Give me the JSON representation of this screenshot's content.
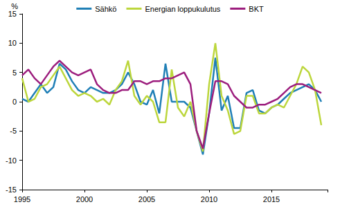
{
  "chart_data": {
    "type": "line",
    "y_label": "%",
    "x": [
      1995,
      1995.5,
      1996,
      1996.5,
      1997,
      1997.5,
      1998,
      1998.5,
      1999,
      1999.5,
      2000,
      2000.5,
      2001,
      2001.5,
      2002,
      2002.5,
      2003,
      2003.5,
      2004,
      2004.5,
      2005,
      2005.5,
      2006,
      2006.5,
      2007,
      2007.5,
      2008,
      2008.5,
      2009,
      2009.5,
      2010,
      2010.5,
      2011,
      2011.5,
      2012,
      2012.5,
      2013,
      2013.5,
      2014,
      2014.5,
      2015,
      2015.5,
      2016,
      2016.5,
      2017,
      2017.5,
      2018,
      2018.5,
      2019
    ],
    "series": [
      {
        "name": "Sähkö",
        "color": "#1f7fb6",
        "values": [
          0.5,
          0,
          1.5,
          3,
          1.5,
          2.5,
          6.5,
          5.5,
          3.5,
          2,
          1.5,
          2.5,
          2,
          1.5,
          1.5,
          2,
          3,
          5,
          3,
          0,
          -0.5,
          2,
          -2,
          6.5,
          0,
          0,
          0,
          -1,
          -5,
          -9,
          -2,
          7.5,
          -1.5,
          1,
          -4.5,
          -4.5,
          1.5,
          2,
          -1.5,
          -2,
          -1,
          -0.5,
          0.5,
          1.5,
          2,
          2.5,
          3,
          2,
          0
        ]
      },
      {
        "name": "Energian loppukulutus",
        "color": "#bcd63c",
        "values": [
          4,
          0,
          0.5,
          2.5,
          3,
          4.5,
          6,
          4,
          2,
          1,
          1.5,
          1,
          0,
          0.5,
          -0.5,
          2,
          3.5,
          7,
          1,
          -0.5,
          1,
          0,
          -3.5,
          -3.5,
          5.5,
          -1,
          -2.5,
          0,
          -5,
          -8.5,
          3,
          10,
          1,
          -1.5,
          -5.5,
          -5,
          1,
          1,
          -2,
          -2,
          -1,
          -0.5,
          -1,
          1,
          3,
          6,
          5,
          2,
          -4
        ]
      },
      {
        "name": "BKT",
        "color": "#9c1d7d",
        "values": [
          4.5,
          5.5,
          4,
          3,
          4.5,
          6,
          7,
          6,
          5,
          4.5,
          5,
          5.5,
          3,
          2,
          1.5,
          1.5,
          2,
          2,
          3.5,
          3.5,
          3,
          3.5,
          3.5,
          4,
          4,
          4.5,
          5,
          3,
          -5,
          -8,
          -2,
          3.5,
          3.5,
          3,
          1,
          0,
          -1,
          -1,
          -0.5,
          -0.5,
          0,
          0.5,
          1.5,
          2.5,
          3,
          3,
          2.5,
          2,
          1.5
        ]
      }
    ],
    "xlim": [
      1995,
      2019.5
    ],
    "xticks": [
      1995,
      2000,
      2005,
      2010,
      2015
    ],
    "ylim": [
      -15,
      15
    ],
    "yticks": [
      -15,
      -10,
      -5,
      0,
      5,
      10,
      15
    ],
    "grid": false,
    "legend": "top"
  }
}
